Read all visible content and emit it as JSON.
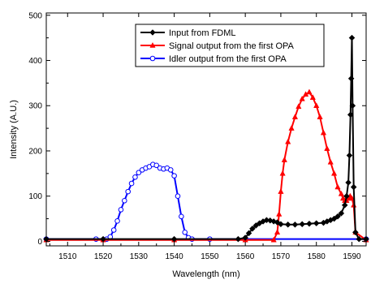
{
  "chart_data": {
    "type": "line",
    "title": "",
    "xlabel": "Wavelength (nm)",
    "ylabel": "Intensity (A.U.)",
    "xlim": [
      1504,
      1594
    ],
    "ylim": [
      -10,
      505
    ],
    "x_ticks": [
      1510,
      1520,
      1530,
      1540,
      1550,
      1560,
      1570,
      1580,
      1590
    ],
    "x_tick_labels": [
      "1510",
      "1520",
      "1530",
      "1540",
      "1550",
      "1560",
      "1570",
      "1580",
      "1590"
    ],
    "y_ticks": [
      0,
      100,
      200,
      300,
      400,
      500
    ],
    "y_tick_labels": [
      "0",
      "100",
      "200",
      "300",
      "400",
      "500"
    ],
    "grid": false,
    "legend_position": "top",
    "series": [
      {
        "name": "Input from FDML",
        "color": "#000000",
        "marker": "diamond-filled",
        "x": [
          1504,
          1520,
          1540,
          1558,
          1560,
          1561,
          1562,
          1563,
          1564,
          1565,
          1566,
          1567,
          1568,
          1569,
          1570,
          1572,
          1574,
          1576,
          1578,
          1580,
          1582,
          1583,
          1584,
          1585,
          1586,
          1587,
          1588,
          1588.5,
          1589,
          1589.3,
          1589.6,
          1589.8,
          1590,
          1590.2,
          1590.5,
          1591,
          1592,
          1594
        ],
        "y": [
          5,
          5,
          5,
          5,
          8,
          18,
          28,
          35,
          40,
          44,
          47,
          46,
          44,
          42,
          38,
          37,
          37,
          38,
          39,
          40,
          41,
          44,
          47,
          50,
          55,
          62,
          80,
          100,
          130,
          190,
          280,
          360,
          450,
          300,
          120,
          20,
          5,
          5
        ]
      },
      {
        "name": "Signal output from the first OPA",
        "color": "#ff0000",
        "marker": "triangle-filled",
        "x": [
          1504,
          1520,
          1540,
          1560,
          1568,
          1569,
          1569.5,
          1570,
          1570.5,
          1571,
          1572,
          1573,
          1574,
          1575,
          1576,
          1577,
          1578,
          1579,
          1580,
          1581,
          1582,
          1583,
          1584,
          1585,
          1586,
          1587,
          1587.5,
          1588,
          1588.5,
          1589,
          1589.5,
          1590,
          1590.5,
          1591,
          1594
        ],
        "y": [
          3,
          3,
          3,
          3,
          3,
          20,
          60,
          110,
          150,
          180,
          220,
          250,
          275,
          298,
          315,
          325,
          330,
          318,
          300,
          275,
          240,
          205,
          175,
          150,
          120,
          105,
          95,
          90,
          90,
          95,
          100,
          95,
          80,
          20,
          3
        ]
      },
      {
        "name": "Idler output from the first OPA",
        "color": "#0000ff",
        "marker": "circle-open",
        "x": [
          1504,
          1518,
          1521,
          1522,
          1523,
          1524,
          1525,
          1526,
          1527,
          1528,
          1529,
          1530,
          1531,
          1532,
          1533,
          1534,
          1535,
          1536,
          1537,
          1538,
          1539,
          1540,
          1541,
          1542,
          1543,
          1544,
          1545,
          1550,
          1560,
          1594
        ],
        "y": [
          5,
          5,
          5,
          10,
          25,
          45,
          70,
          90,
          110,
          128,
          142,
          152,
          158,
          162,
          165,
          170,
          168,
          162,
          160,
          162,
          158,
          145,
          100,
          55,
          20,
          8,
          5,
          5,
          5,
          5
        ]
      }
    ]
  }
}
